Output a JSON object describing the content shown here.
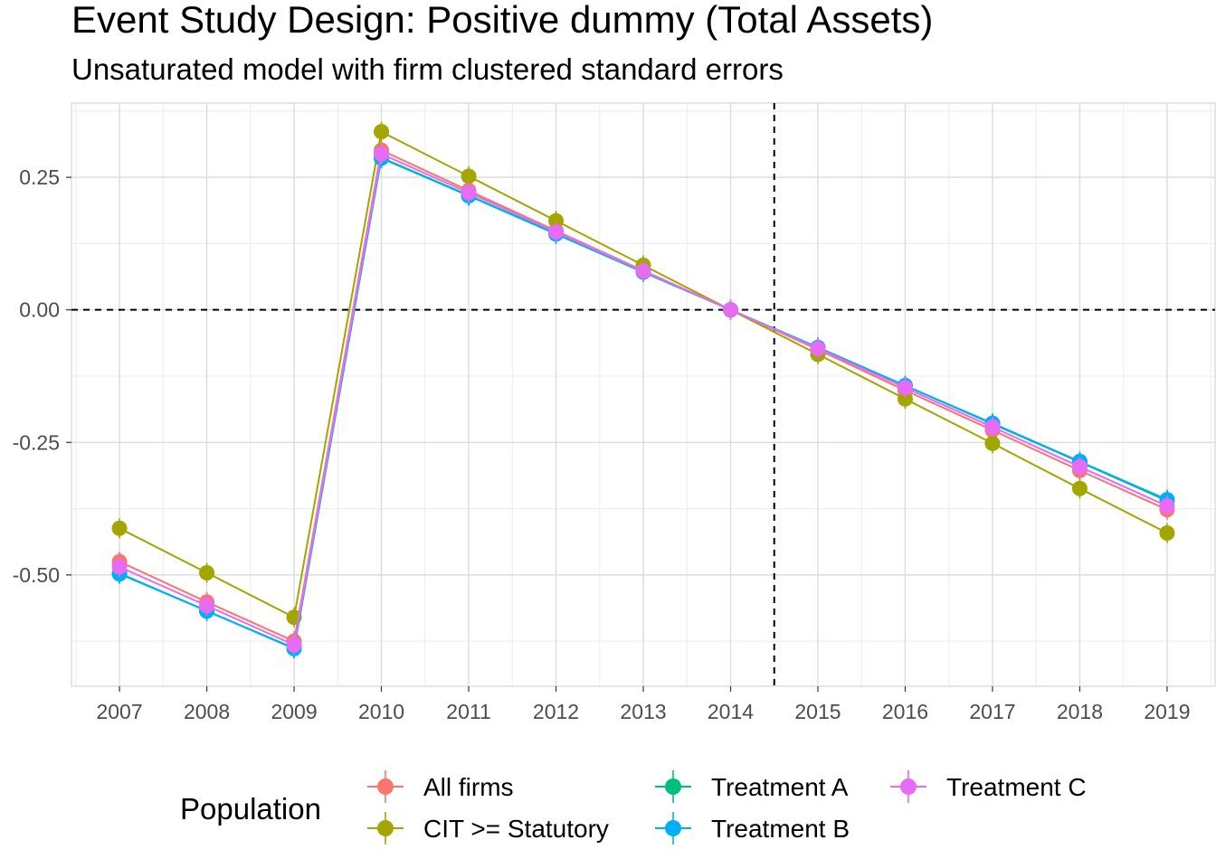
{
  "title": "Event Study Design: Positive dummy (Total Assets)",
  "subtitle": "Unsaturated model with firm clustered standard errors",
  "chart_data": {
    "type": "line",
    "title": "Event Study Design: Positive dummy (Total Assets)",
    "subtitle": "Unsaturated model with firm clustered standard errors",
    "xlabel": "",
    "ylabel": "",
    "x": [
      2007,
      2008,
      2009,
      2010,
      2011,
      2012,
      2013,
      2014,
      2015,
      2016,
      2017,
      2018,
      2019
    ],
    "x_tick_labels": [
      "2007",
      "2008",
      "2009",
      "2010",
      "2011",
      "2012",
      "2013",
      "2014",
      "2015",
      "2016",
      "2017",
      "2018",
      "2019"
    ],
    "y_tick_labels": [
      "0.25",
      "0.00",
      "-0.25",
      "-0.50"
    ],
    "y_ticks": [
      0.25,
      0.0,
      -0.25,
      -0.5
    ],
    "ylim": [
      -0.71,
      0.39
    ],
    "xlim": [
      2006.45,
      2019.55
    ],
    "grid": true,
    "reference_lines": {
      "y": 0.0,
      "x": 2014.5,
      "style": "dashed"
    },
    "legend": {
      "title": "Population",
      "position": "bottom"
    },
    "series": [
      {
        "name": "All firms",
        "color": "#F8766D",
        "values": [
          -0.475,
          -0.551,
          -0.625,
          0.301,
          0.225,
          0.149,
          0.074,
          0.0,
          -0.075,
          -0.152,
          -0.227,
          -0.303,
          -0.377
        ]
      },
      {
        "name": "CIT >= Statutory",
        "color": "#A3A500",
        "values": [
          -0.412,
          -0.496,
          -0.58,
          0.336,
          0.252,
          0.168,
          0.084,
          0.0,
          -0.084,
          -0.168,
          -0.252,
          -0.337,
          -0.421
        ]
      },
      {
        "name": "Treatment A",
        "color": "#00BF7D",
        "values": [
          -0.497,
          -0.568,
          -0.638,
          0.287,
          0.216,
          0.144,
          0.072,
          0.0,
          -0.071,
          -0.143,
          -0.215,
          -0.287,
          -0.36
        ]
      },
      {
        "name": "Treatment B",
        "color": "#00B0F6",
        "values": [
          -0.498,
          -0.568,
          -0.639,
          0.286,
          0.215,
          0.143,
          0.071,
          0.0,
          -0.071,
          -0.143,
          -0.214,
          -0.286,
          -0.358
        ]
      },
      {
        "name": "Treatment C",
        "color": "#E76BF3",
        "values": [
          -0.485,
          -0.558,
          -0.632,
          0.294,
          0.221,
          0.147,
          0.073,
          0.0,
          -0.073,
          -0.147,
          -0.221,
          -0.296,
          -0.37
        ]
      }
    ]
  }
}
